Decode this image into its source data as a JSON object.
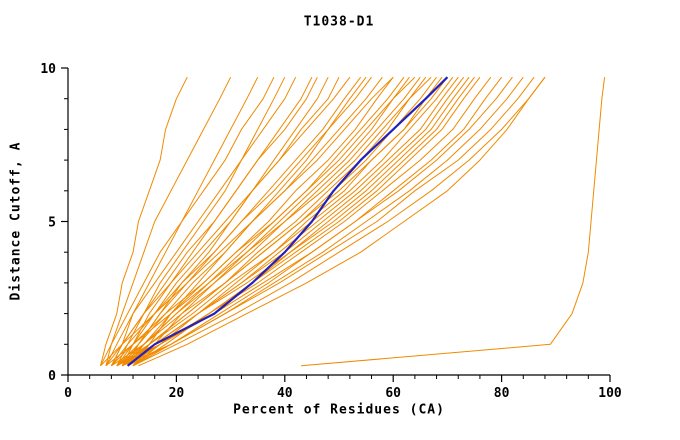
{
  "chart_data": {
    "type": "line",
    "title": "T1038-D1",
    "xlabel": "Percent of Residues (CA)",
    "ylabel": "Distance Cutoff, A",
    "xlim": [
      0,
      100
    ],
    "ylim": [
      0,
      10
    ],
    "xticks": [
      0,
      20,
      40,
      60,
      80,
      100
    ],
    "yticks": [
      0,
      5,
      10
    ],
    "x_minor_step": 4,
    "y_minor_step": 1,
    "grid": false,
    "legend": "none",
    "series_color": "#f08a00",
    "highlight_color": "#2222bb",
    "y_grid": [
      0.3,
      1,
      2,
      3,
      4,
      5,
      6,
      7,
      8,
      9,
      9.7
    ],
    "highlight_series": [
      11,
      16,
      27,
      34,
      40,
      45,
      49,
      54,
      60,
      66,
      70
    ],
    "orange_series": [
      [
        6,
        7,
        9,
        10,
        12,
        13,
        15,
        17,
        18,
        20,
        22
      ],
      [
        7,
        8,
        10,
        12,
        14,
        16,
        19,
        22,
        25,
        28,
        30
      ],
      [
        8,
        10,
        12,
        15,
        18,
        21,
        24,
        27,
        30,
        33,
        35
      ],
      [
        6,
        8,
        11,
        14,
        17,
        21,
        25,
        29,
        32,
        36,
        38
      ],
      [
        9,
        11,
        14,
        17,
        21,
        25,
        29,
        32,
        35,
        38,
        40
      ],
      [
        7,
        9,
        12,
        16,
        20,
        24,
        28,
        32,
        36,
        40,
        42
      ],
      [
        10,
        12,
        15,
        19,
        23,
        27,
        31,
        35,
        39,
        43,
        45
      ],
      [
        8,
        10,
        14,
        18,
        22,
        27,
        31,
        35,
        40,
        44,
        46
      ],
      [
        11,
        13,
        17,
        21,
        26,
        30,
        34,
        38,
        42,
        46,
        48
      ],
      [
        9,
        12,
        16,
        20,
        25,
        30,
        34,
        39,
        43,
        48,
        50
      ],
      [
        7,
        10,
        14,
        19,
        24,
        29,
        34,
        39,
        44,
        49,
        52
      ],
      [
        10,
        13,
        17,
        22,
        27,
        32,
        37,
        42,
        47,
        51,
        54
      ],
      [
        12,
        15,
        19,
        24,
        29,
        34,
        39,
        44,
        48,
        52,
        55
      ],
      [
        8,
        11,
        16,
        21,
        27,
        32,
        38,
        43,
        48,
        53,
        56
      ],
      [
        9,
        13,
        18,
        23,
        29,
        34,
        40,
        45,
        50,
        55,
        58
      ],
      [
        11,
        14,
        19,
        25,
        31,
        37,
        42,
        48,
        53,
        57,
        60
      ],
      [
        6,
        10,
        16,
        22,
        28,
        34,
        40,
        46,
        51,
        56,
        60
      ],
      [
        10,
        14,
        20,
        26,
        32,
        38,
        44,
        49,
        54,
        59,
        62
      ],
      [
        12,
        16,
        21,
        27,
        33,
        39,
        45,
        51,
        56,
        60,
        63
      ],
      [
        8,
        12,
        18,
        25,
        31,
        38,
        44,
        50,
        55,
        60,
        64
      ],
      [
        9,
        14,
        20,
        27,
        34,
        40,
        46,
        52,
        57,
        62,
        65
      ],
      [
        11,
        15,
        22,
        29,
        35,
        42,
        48,
        54,
        59,
        63,
        66
      ],
      [
        7,
        12,
        19,
        26,
        33,
        40,
        47,
        53,
        58,
        63,
        67
      ],
      [
        10,
        15,
        22,
        29,
        36,
        43,
        49,
        55,
        60,
        65,
        68
      ],
      [
        12,
        17,
        24,
        31,
        38,
        44,
        51,
        56,
        62,
        66,
        69
      ],
      [
        8,
        14,
        21,
        29,
        36,
        43,
        50,
        56,
        62,
        67,
        70
      ],
      [
        9,
        15,
        23,
        30,
        38,
        45,
        52,
        58,
        63,
        68,
        71
      ],
      [
        11,
        16,
        24,
        32,
        39,
        46,
        53,
        59,
        65,
        69,
        72
      ],
      [
        10,
        16,
        24,
        32,
        40,
        47,
        54,
        60,
        66,
        70,
        73
      ],
      [
        12,
        18,
        26,
        34,
        41,
        48,
        55,
        61,
        67,
        71,
        74
      ],
      [
        9,
        16,
        24,
        33,
        41,
        49,
        56,
        62,
        68,
        72,
        75
      ],
      [
        11,
        17,
        26,
        34,
        42,
        50,
        57,
        63,
        69,
        73,
        76
      ],
      [
        10,
        17,
        26,
        35,
        43,
        51,
        58,
        65,
        71,
        75,
        78
      ],
      [
        12,
        19,
        28,
        37,
        45,
        53,
        60,
        67,
        73,
        77,
        80
      ],
      [
        9,
        17,
        27,
        36,
        45,
        53,
        61,
        68,
        74,
        79,
        82
      ],
      [
        11,
        19,
        29,
        38,
        47,
        55,
        63,
        70,
        76,
        81,
        84
      ],
      [
        10,
        19,
        29,
        39,
        48,
        57,
        64,
        72,
        78,
        83,
        86
      ],
      [
        12,
        20,
        31,
        41,
        50,
        59,
        67,
        74,
        80,
        85,
        88
      ],
      [
        13,
        22,
        33,
        44,
        54,
        62,
        70,
        76,
        81,
        85,
        88
      ],
      [
        43,
        89,
        93,
        95,
        96,
        96.5,
        97,
        97.5,
        98,
        98.5,
        99
      ]
    ]
  }
}
